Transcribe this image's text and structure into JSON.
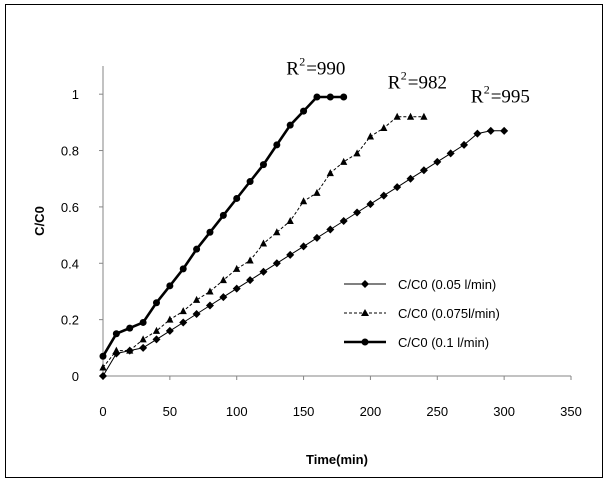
{
  "chart_data": {
    "type": "line",
    "title": "",
    "xlabel": "Time(min)",
    "ylabel": "C/C0",
    "xlim": [
      0,
      350
    ],
    "ylim": [
      0,
      1.1
    ],
    "x_ticks": [
      "0",
      "50",
      "100",
      "150",
      "200",
      "250",
      "300",
      "350"
    ],
    "y_ticks": [
      "0",
      "0.2",
      "0.4",
      "0.6",
      "0.8",
      "1"
    ],
    "grid": false,
    "legend_position": "right",
    "series": [
      {
        "name": "C/C0 (0.05 l/min)",
        "marker": "diamond",
        "line_style": "solid",
        "line_weight": "thin",
        "color": "#000000",
        "x": [
          0,
          10,
          20,
          30,
          40,
          50,
          60,
          70,
          80,
          90,
          100,
          110,
          120,
          130,
          140,
          150,
          160,
          170,
          180,
          190,
          200,
          210,
          220,
          230,
          240,
          250,
          260,
          270,
          280,
          290,
          300
        ],
        "y": [
          0.0,
          0.08,
          0.09,
          0.1,
          0.13,
          0.16,
          0.19,
          0.22,
          0.25,
          0.28,
          0.31,
          0.34,
          0.37,
          0.4,
          0.43,
          0.46,
          0.49,
          0.52,
          0.55,
          0.58,
          0.61,
          0.64,
          0.67,
          0.7,
          0.73,
          0.76,
          0.79,
          0.82,
          0.86,
          0.87,
          0.87
        ]
      },
      {
        "name": "C/C0 (0.075l/min)",
        "marker": "triangle",
        "line_style": "dashed",
        "line_weight": "thin",
        "color": "#000000",
        "x": [
          0,
          10,
          20,
          30,
          40,
          50,
          60,
          70,
          80,
          90,
          100,
          110,
          120,
          130,
          140,
          150,
          160,
          170,
          180,
          190,
          200,
          210,
          220,
          230,
          240
        ],
        "y": [
          0.03,
          0.09,
          0.09,
          0.13,
          0.16,
          0.2,
          0.23,
          0.27,
          0.3,
          0.34,
          0.38,
          0.41,
          0.47,
          0.51,
          0.55,
          0.62,
          0.65,
          0.72,
          0.76,
          0.79,
          0.85,
          0.88,
          0.92,
          0.92,
          0.92
        ]
      },
      {
        "name": "C/C0 (0.1 l/min)",
        "marker": "circle",
        "line_style": "solid",
        "line_weight": "thick",
        "color": "#000000",
        "x": [
          0,
          10,
          20,
          30,
          40,
          50,
          60,
          70,
          80,
          90,
          100,
          110,
          120,
          130,
          140,
          150,
          160,
          170,
          180
        ],
        "y": [
          0.07,
          0.15,
          0.17,
          0.19,
          0.26,
          0.32,
          0.38,
          0.45,
          0.51,
          0.57,
          0.63,
          0.69,
          0.75,
          0.82,
          0.89,
          0.94,
          0.99,
          0.99,
          0.99
        ]
      }
    ],
    "annotations": [
      {
        "prefix": "R",
        "sup": "2",
        "suffix": "=990",
        "x": 137,
        "y": 1.07
      },
      {
        "prefix": "R",
        "sup": "2",
        "suffix": "=982",
        "x": 213,
        "y": 1.02
      },
      {
        "prefix": "R",
        "sup": "2",
        "suffix": "=995",
        "x": 275,
        "y": 0.97
      }
    ]
  }
}
